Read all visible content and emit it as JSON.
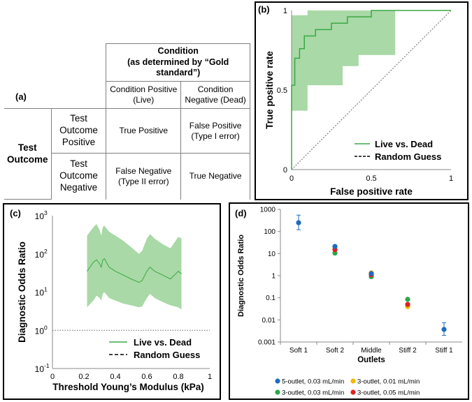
{
  "panel_a": {
    "letter": "(a)",
    "condition_header_line1": "Condition",
    "condition_header_line2": "(as determined by “Gold standard”)",
    "col_pos_line1": "Condition Positive",
    "col_pos_line2": "(Live)",
    "col_neg_line1": "Condition",
    "col_neg_line2": "Negative (Dead)",
    "row_group": "Test Outcome",
    "row_pos_line1": "Test",
    "row_pos_line2": "Outcome",
    "row_pos_line3": "Positive",
    "row_neg_line1": "Test",
    "row_neg_line2": "Outcome",
    "row_neg_line3": "Negative",
    "tp": "True Positive",
    "fp_line1": "False Positive",
    "fp_line2": "(Type I error)",
    "fn_line1": "False Negative",
    "fn_line2": "(Type II error)",
    "tn": "True Negative"
  },
  "chart_data": [
    {
      "panel": "(b)",
      "type": "line",
      "xlabel": "False positive rate",
      "ylabel": "True positive rate",
      "xlim": [
        0,
        1
      ],
      "ylim": [
        0,
        1
      ],
      "x_ticks": [
        0,
        0.5,
        1
      ],
      "x_tick_labels": [
        "0",
        "0.5",
        "1"
      ],
      "y_ticks": [
        0,
        0.5,
        1
      ],
      "y_tick_labels": [
        "0",
        "0.5",
        "1"
      ],
      "legend": [
        "Live vs. Dead",
        "Random Guess"
      ],
      "legend_position": "bottom-right",
      "series": [
        {
          "name": "Live vs. Dead",
          "color": "#3aa845",
          "x": [
            0,
            0,
            0.02,
            0.02,
            0.05,
            0.05,
            0.08,
            0.08,
            0.15,
            0.15,
            0.25,
            0.25,
            0.35,
            0.35,
            0.5,
            0.5,
            1
          ],
          "y": [
            0,
            0.53,
            0.53,
            0.7,
            0.7,
            0.76,
            0.76,
            0.84,
            0.84,
            0.88,
            0.88,
            0.92,
            0.92,
            0.96,
            0.96,
            1,
            1
          ]
        },
        {
          "name": "Random Guess",
          "color": "#555555",
          "x": [
            0,
            1
          ],
          "y": [
            0,
            1
          ]
        }
      ],
      "band": {
        "color": "#a9d9a6",
        "x": [
          0,
          0.02,
          0.05,
          0.1,
          0.17,
          0.32,
          0.42,
          0.55,
          0.65
        ],
        "lower": [
          0.37,
          0.37,
          0.37,
          0.53,
          0.53,
          0.65,
          0.72,
          0.72,
          0.9
        ],
        "upper": [
          0.97,
          0.97,
          0.97,
          1,
          1,
          1,
          1,
          1,
          1
        ]
      }
    },
    {
      "panel": "(c)",
      "type": "line",
      "xlabel": "Threshold Young’s Modulus (kPa)",
      "ylabel": "Diagnostic Odds Ratio",
      "yscale": "log",
      "xlim": [
        0,
        1
      ],
      "ylim": [
        0.1,
        1000
      ],
      "x_ticks": [
        0,
        0.2,
        0.4,
        0.6,
        0.8,
        1
      ],
      "x_tick_labels": [
        "0",
        "0.2",
        "0.4",
        "0.6",
        "0.8",
        "1"
      ],
      "y_ticks": [
        0.1,
        1,
        10,
        100,
        1000
      ],
      "y_tick_labels": [
        "10",
        "10",
        "10",
        "10",
        "10"
      ],
      "y_tick_exponents": [
        "-1",
        "0",
        "1",
        "2",
        "3"
      ],
      "legend": [
        "Live vs. Dead",
        "Random Guess"
      ],
      "legend_position": "bottom-right",
      "reference_line_y": 1,
      "series": [
        {
          "name": "Live vs. Dead",
          "color": "#3aa845",
          "x": [
            0.22,
            0.26,
            0.28,
            0.3,
            0.31,
            0.32,
            0.33,
            0.36,
            0.4,
            0.45,
            0.5,
            0.55,
            0.57,
            0.6,
            0.62,
            0.65,
            0.7,
            0.75,
            0.8,
            0.82
          ],
          "y": [
            35,
            60,
            70,
            55,
            45,
            70,
            75,
            45,
            35,
            28,
            22,
            18,
            20,
            35,
            45,
            35,
            28,
            22,
            35,
            30
          ]
        }
      ],
      "band": {
        "color": "#a9d9a6",
        "x": [
          0.22,
          0.26,
          0.28,
          0.3,
          0.31,
          0.32,
          0.33,
          0.36,
          0.4,
          0.45,
          0.5,
          0.55,
          0.57,
          0.6,
          0.62,
          0.65,
          0.7,
          0.75,
          0.8,
          0.82
        ],
        "lower": [
          4,
          6,
          8,
          7,
          6,
          9,
          10,
          7,
          6,
          5,
          4.5,
          4,
          4.2,
          7,
          9,
          7,
          5.5,
          4.5,
          4,
          3.5
        ],
        "upper": [
          300,
          500,
          600,
          420,
          300,
          500,
          550,
          380,
          300,
          220,
          150,
          100,
          120,
          250,
          330,
          250,
          180,
          140,
          280,
          250
        ]
      }
    },
    {
      "panel": "(d)",
      "type": "scatter",
      "xlabel": "Outlets",
      "ylabel": "Diagnostic Odds Ratio",
      "yscale": "log",
      "ylim": [
        0.001,
        1000
      ],
      "y_ticks": [
        0.001,
        0.01,
        0.1,
        1,
        10,
        100,
        1000
      ],
      "y_tick_labels": [
        "0.001",
        "0.01",
        "0.1",
        "1",
        "10",
        "100",
        "1000"
      ],
      "categories": [
        "Soft 1",
        "Soft 2",
        "Middle",
        "Stiff 2",
        "Stiff 1"
      ],
      "legend_position": "bottom",
      "series": [
        {
          "name": "5-outlet, 0.03 mL/min",
          "color": "#1f6bbf",
          "values": [
            250,
            21,
            1.25,
            null,
            0.0037
          ],
          "err_low": [
            120,
            null,
            null,
            null,
            0.002
          ],
          "err_high": [
            550,
            null,
            null,
            null,
            0.0075
          ]
        },
        {
          "name": "3-outlet, 0.01 mL/min",
          "color": "#f2b800",
          "values": [
            null,
            16,
            1.35,
            0.04,
            null
          ]
        },
        {
          "name": "3-outlet, 0.03 mL/min",
          "color": "#2aa84a",
          "values": [
            null,
            10.5,
            0.9,
            0.085,
            null
          ]
        },
        {
          "name": "3-outlet, 0.05 mL/min",
          "color": "#e02020",
          "values": [
            null,
            15,
            1.1,
            0.05,
            null
          ]
        }
      ]
    }
  ]
}
